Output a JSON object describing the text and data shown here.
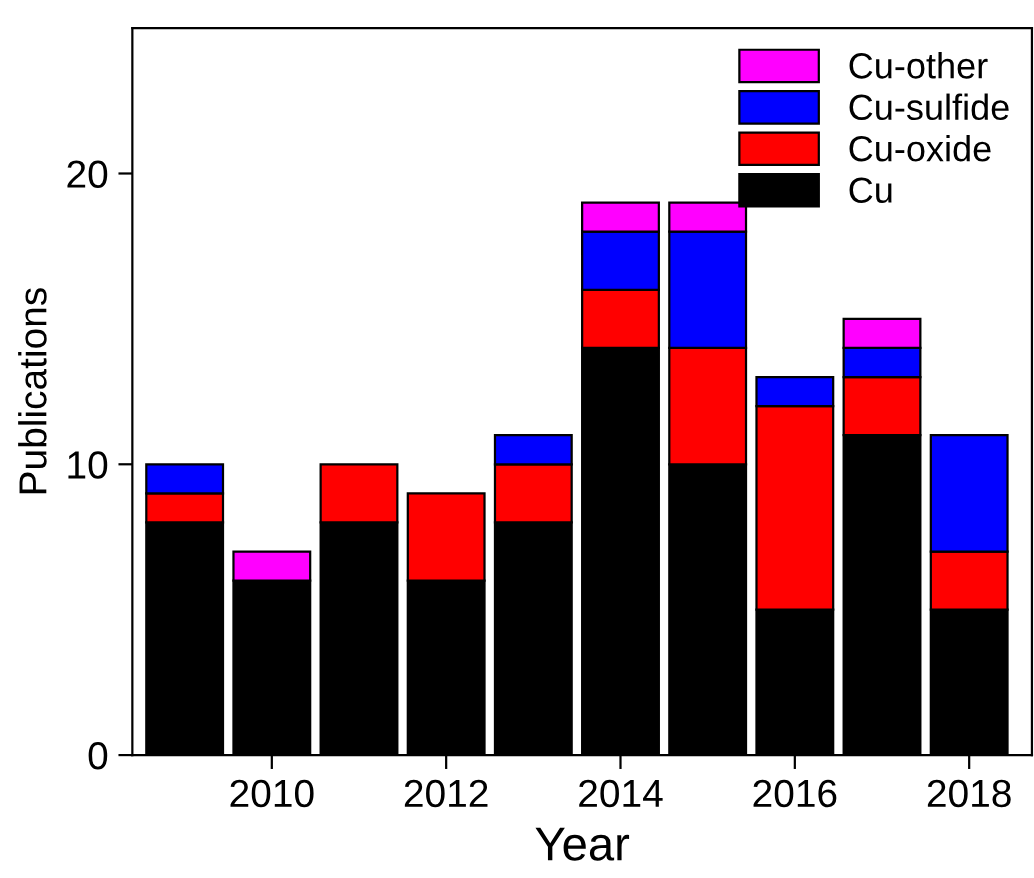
{
  "chart_data": {
    "type": "bar",
    "stacked": true,
    "xlabel": "Year",
    "ylabel": "Publications",
    "x": [
      2009,
      2010,
      2011,
      2012,
      2013,
      2014,
      2015,
      2016,
      2017,
      2018
    ],
    "series": [
      {
        "name": "Cu",
        "color": "#000000",
        "values": [
          8,
          6,
          8,
          6,
          8,
          14,
          10,
          5,
          11,
          5
        ]
      },
      {
        "name": "Cu-oxide",
        "color": "#ff0000",
        "values": [
          1,
          null,
          2,
          3,
          2,
          2,
          4,
          7,
          2,
          2
        ]
      },
      {
        "name": "Cu-sulfide",
        "color": "#0000ff",
        "values": [
          1,
          null,
          null,
          null,
          1,
          2,
          4,
          1,
          1,
          4
        ]
      },
      {
        "name": "Cu-other",
        "color": "#ff00ff",
        "values": [
          null,
          1,
          null,
          null,
          null,
          1,
          1,
          null,
          1,
          null
        ]
      }
    ],
    "xlim": [
      2008.4,
      2018.72
    ],
    "xticks": [
      2010,
      2012,
      2014,
      2016,
      2018
    ],
    "ylim": [
      0,
      25
    ],
    "yticks": [
      0,
      10,
      20
    ],
    "grid": false,
    "legend": "top right"
  }
}
